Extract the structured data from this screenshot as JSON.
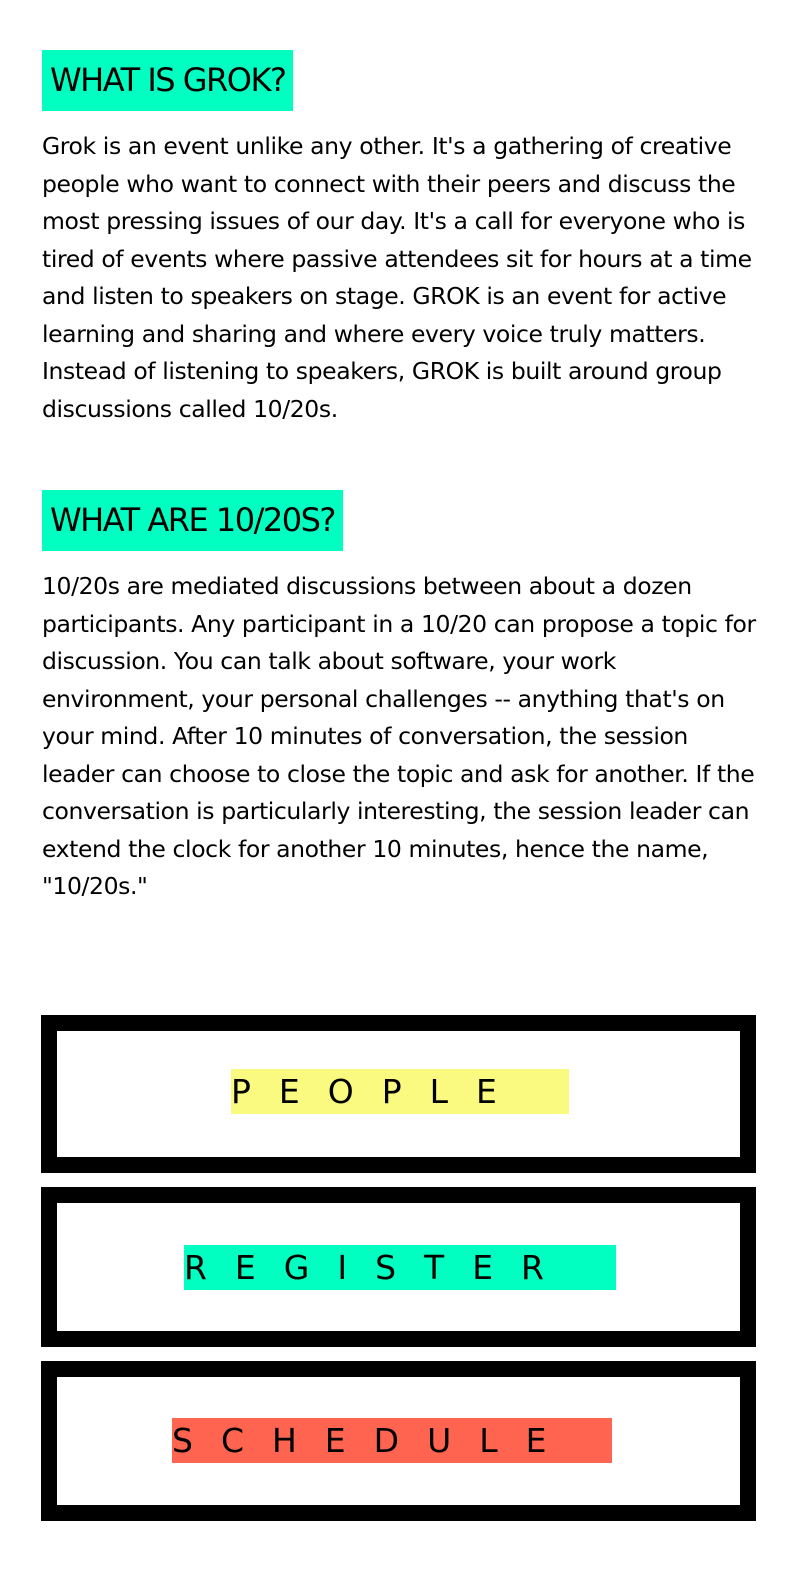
{
  "sections": {
    "grok": {
      "heading": "WHAT IS GROK?",
      "body": "Grok is an event unlike any other. It's a gathering of creative people who want to connect with their peers and discuss the most pressing issues of our day. It's a call for everyone who is tired of events where passive attendees sit for hours at a time and listen to speakers on stage. GROK is an event for active learning and sharing and where every voice truly matters. Instead of listening to speakers, GROK is built around group discussions called 10/20s."
    },
    "ten_twenty": {
      "heading": "WHAT ARE 10/20S?",
      "body": "10/20s are mediated discussions between about a dozen participants. Any participant in a 10/20 can propose a topic for discussion. You can talk about software, your work environment, your personal challenges -- anything that's on your mind. After 10 minutes of conversation, the session leader can choose to close the topic and ask for another. If the conversation is particularly interesting, the session leader can extend the clock for another 10 minutes, hence the name, \"10/20s.\""
    }
  },
  "nav": {
    "people": {
      "label": "PEOPLE",
      "color": "#fafa80"
    },
    "register": {
      "label": "REGISTER",
      "color": "#00ffc0"
    },
    "schedule": {
      "label": "SCHEDULE",
      "color": "#ff6450"
    }
  },
  "colors": {
    "heading_highlight": "#00ffc0",
    "border": "#000000",
    "background": "#ffffff"
  }
}
